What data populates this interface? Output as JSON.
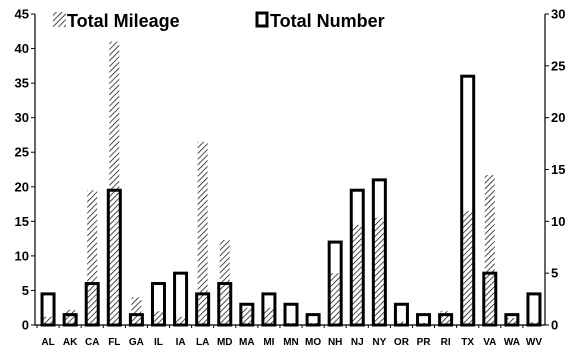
{
  "chart_data": {
    "type": "bar",
    "categories": [
      "AL",
      "AK",
      "CA",
      "FL",
      "GA",
      "IL",
      "IA",
      "LA",
      "MD",
      "MA",
      "MI",
      "MN",
      "MO",
      "NH",
      "NJ",
      "NY",
      "OR",
      "PR",
      "RI",
      "TX",
      "VA",
      "WA",
      "WV"
    ],
    "series": [
      {
        "name": "Total Mileage",
        "axis": "left",
        "pattern": "hatched",
        "values": [
          1.2,
          2.2,
          19.5,
          41,
          4,
          2,
          1.2,
          26.5,
          12.3,
          2.5,
          2.5,
          0.3,
          0.3,
          7.5,
          14.5,
          15.5,
          0.5,
          0.3,
          2,
          16.5,
          21.7,
          1,
          0.4
        ]
      },
      {
        "name": "Total Number",
        "axis": "right",
        "pattern": "hollow",
        "values": [
          3,
          1,
          4,
          13,
          1,
          4,
          5,
          3,
          4,
          2,
          3,
          2,
          1,
          8,
          13,
          14,
          2,
          1,
          1,
          24,
          5,
          1,
          3
        ]
      }
    ],
    "y_left": {
      "ticks": [
        "0",
        "5",
        "10",
        "15",
        "20",
        "25",
        "30",
        "35",
        "40",
        "45"
      ],
      "ylim": [
        0,
        45
      ]
    },
    "y_right": {
      "ticks": [
        "0",
        "5",
        "10",
        "15",
        "20",
        "25",
        "30"
      ],
      "ylim": [
        0,
        30
      ]
    },
    "legend_placement": "top-left",
    "grid": false
  }
}
